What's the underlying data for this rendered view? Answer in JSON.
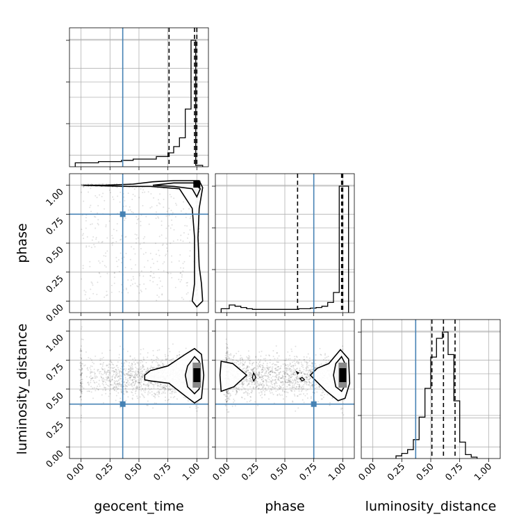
{
  "chart_data": {
    "type": "corner",
    "parameters": [
      "geocent_time",
      "phase",
      "luminosity_distance"
    ],
    "axis_labels": {
      "x": [
        "geocent_time",
        "phase",
        "luminosity_distance"
      ],
      "y": [
        "",
        "phase",
        "luminosity_distance"
      ]
    },
    "tick_values": [
      0.0,
      0.25,
      0.5,
      0.75,
      1.0
    ],
    "tick_labels": [
      "0.00",
      "0.25",
      "0.50",
      "0.75",
      "1.00"
    ],
    "axis_range": [
      -0.1,
      1.1
    ],
    "grid": true,
    "truths": {
      "geocent_time": 0.36,
      "phase": 0.75,
      "luminosity_distance": 0.37
    },
    "truth_color": "#4682b4",
    "histograms": {
      "geocent_time": {
        "bin_edges": [
          -0.05,
          0.05,
          0.15,
          0.25,
          0.35,
          0.45,
          0.55,
          0.65,
          0.75,
          0.8,
          0.85,
          0.9,
          0.95,
          0.99,
          1.05
        ],
        "heights": [
          0.02,
          0.02,
          0.03,
          0.03,
          0.04,
          0.05,
          0.05,
          0.07,
          0.1,
          0.15,
          0.22,
          0.45,
          1.0,
          0
        ],
        "quantiles": [
          0.76,
          0.98,
          1.0
        ]
      },
      "phase": {
        "bin_edges": [
          -0.05,
          0.02,
          0.07,
          0.12,
          0.17,
          0.22,
          0.27,
          0.32,
          0.37,
          0.42,
          0.47,
          0.52,
          0.57,
          0.62,
          0.67,
          0.72,
          0.77,
          0.82,
          0.87,
          0.92,
          0.97,
          0.99,
          1.05
        ],
        "heights": [
          0.02,
          0.05,
          0.04,
          0.03,
          0.02,
          0.015,
          0.015,
          0.015,
          0.015,
          0.015,
          0.015,
          0.015,
          0.015,
          0.02,
          0.02,
          0.025,
          0.03,
          0.04,
          0.07,
          0.15,
          1.0,
          1.0
        ],
        "quantiles": [
          0.61,
          0.99,
          1.0
        ]
      },
      "luminosity_distance": {
        "bin_edges": [
          0.2,
          0.25,
          0.3,
          0.35,
          0.4,
          0.45,
          0.5,
          0.55,
          0.6,
          0.65,
          0.7,
          0.75,
          0.8,
          0.85,
          0.9
        ],
        "heights": [
          0.01,
          0.03,
          0.06,
          0.14,
          0.32,
          0.55,
          0.8,
          0.95,
          1.0,
          0.82,
          0.45,
          0.12,
          0.02,
          0.0
        ],
        "quantiles": [
          0.51,
          0.61,
          0.71
        ]
      }
    },
    "contours": {
      "phase_vs_geocent_time": {
        "outer": [
          [
            0.02,
            1.0
          ],
          [
            0.2,
            1.0
          ],
          [
            0.45,
            1.01
          ],
          [
            0.62,
            1.03
          ],
          [
            0.8,
            1.04
          ],
          [
            1.02,
            1.04
          ],
          [
            1.05,
            0.98
          ],
          [
            1.02,
            0.8
          ],
          [
            1.01,
            0.55
          ],
          [
            1.02,
            0.3
          ],
          [
            1.04,
            0.15
          ],
          [
            1.05,
            0.0
          ],
          [
            1.0,
            -0.05
          ],
          [
            0.96,
            0.0
          ],
          [
            0.98,
            0.15
          ],
          [
            0.98,
            0.3
          ],
          [
            0.98,
            0.55
          ],
          [
            0.96,
            0.8
          ],
          [
            0.85,
            0.97
          ],
          [
            0.6,
            0.99
          ],
          [
            0.4,
            0.99
          ],
          [
            0.02,
            1.0
          ]
        ],
        "inner": [
          [
            0.62,
            1.0
          ],
          [
            0.8,
            1.02
          ],
          [
            0.97,
            1.02
          ],
          [
            1.03,
            0.97
          ],
          [
            1.0,
            0.9
          ],
          [
            0.96,
            0.97
          ],
          [
            0.8,
            0.99
          ],
          [
            0.62,
            1.0
          ]
        ],
        "peak": [
          1.0,
          1.01
        ]
      },
      "luminosity_distance_vs_geocent_time": {
        "outer": [
          [
            0.55,
            0.62
          ],
          [
            0.6,
            0.66
          ],
          [
            0.75,
            0.7
          ],
          [
            0.9,
            0.8
          ],
          [
            0.98,
            0.85
          ],
          [
            1.04,
            0.8
          ],
          [
            1.06,
            0.62
          ],
          [
            1.04,
            0.42
          ],
          [
            0.98,
            0.38
          ],
          [
            0.9,
            0.44
          ],
          [
            0.76,
            0.55
          ],
          [
            0.6,
            0.57
          ],
          [
            0.55,
            0.58
          ],
          [
            0.55,
            0.62
          ]
        ],
        "inner": [
          [
            0.92,
            0.7
          ],
          [
            0.98,
            0.78
          ],
          [
            1.02,
            0.74
          ],
          [
            1.03,
            0.62
          ],
          [
            1.02,
            0.5
          ],
          [
            0.98,
            0.46
          ],
          [
            0.92,
            0.52
          ],
          [
            0.9,
            0.62
          ],
          [
            0.92,
            0.7
          ]
        ],
        "peak": [
          1.0,
          0.62
        ]
      },
      "luminosity_distance_vs_phase": {
        "outer_right": [
          [
            0.72,
            0.62
          ],
          [
            0.78,
            0.68
          ],
          [
            0.88,
            0.72
          ],
          [
            0.98,
            0.84
          ],
          [
            1.05,
            0.76
          ],
          [
            1.06,
            0.55
          ],
          [
            1.02,
            0.42
          ],
          [
            0.96,
            0.4
          ],
          [
            0.86,
            0.48
          ],
          [
            0.76,
            0.58
          ],
          [
            0.72,
            0.62
          ]
        ],
        "inner_right": [
          [
            0.94,
            0.72
          ],
          [
            0.99,
            0.78
          ],
          [
            1.03,
            0.7
          ],
          [
            1.03,
            0.55
          ],
          [
            0.99,
            0.48
          ],
          [
            0.94,
            0.52
          ],
          [
            0.92,
            0.62
          ],
          [
            0.94,
            0.72
          ]
        ],
        "outer_left": [
          [
            -0.05,
            0.74
          ],
          [
            0.05,
            0.72
          ],
          [
            0.17,
            0.62
          ],
          [
            0.06,
            0.52
          ],
          [
            -0.05,
            0.48
          ],
          [
            -0.06,
            0.62
          ],
          [
            -0.05,
            0.74
          ]
        ],
        "small_blobs": [
          [
            [
              0.23,
              0.64
            ],
            [
              0.25,
              0.6
            ],
            [
              0.23,
              0.57
            ],
            [
              0.22,
              0.6
            ],
            [
              0.23,
              0.64
            ]
          ],
          [
            [
              0.63,
              0.59
            ],
            [
              0.65,
              0.6
            ],
            [
              0.67,
              0.58
            ],
            [
              0.65,
              0.57
            ],
            [
              0.63,
              0.59
            ]
          ],
          [
            [
              0.6,
              0.65
            ],
            [
              0.62,
              0.64
            ],
            [
              0.61,
              0.63
            ],
            [
              0.6,
              0.65
            ]
          ]
        ],
        "peak": [
          1.0,
          0.62
        ]
      }
    }
  }
}
